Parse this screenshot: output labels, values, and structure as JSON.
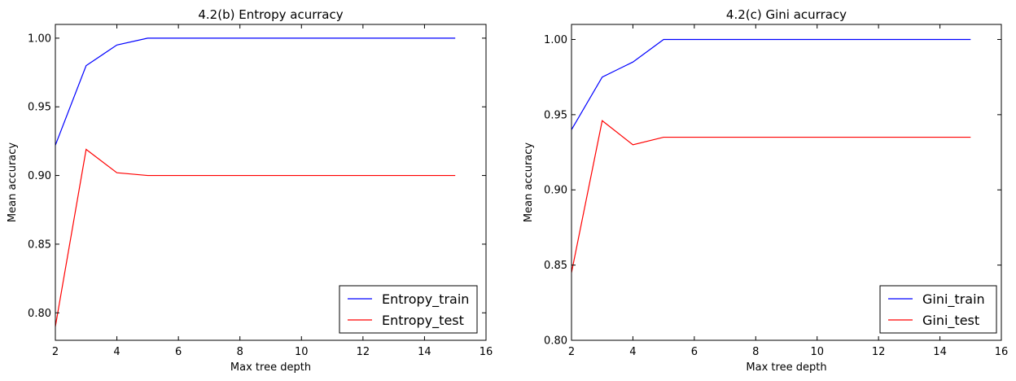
{
  "chart_data": [
    {
      "type": "line",
      "title": "4.2(b) Entropy acurracy",
      "xlabel": "Max tree depth",
      "ylabel": "Mean accuracy",
      "xlim": [
        2,
        16
      ],
      "ylim": [
        0.78,
        1.01
      ],
      "xticks": [
        2,
        4,
        6,
        8,
        10,
        12,
        14,
        16
      ],
      "xtick_labels": [
        "2",
        "4",
        "6",
        "8",
        "10",
        "12",
        "14",
        "16"
      ],
      "yticks": [
        0.8,
        0.85,
        0.9,
        0.95,
        1.0
      ],
      "ytick_labels": [
        "0.80",
        "0.85",
        "0.90",
        "0.95",
        "1.00"
      ],
      "grid": false,
      "legend_position": "lower-right",
      "x": [
        2,
        3,
        4,
        5,
        6,
        7,
        8,
        9,
        10,
        11,
        12,
        13,
        14,
        15
      ],
      "series": [
        {
          "name": "Entropy_train",
          "color": "#0000ff",
          "values": [
            0.922,
            0.98,
            0.995,
            1.0,
            1.0,
            1.0,
            1.0,
            1.0,
            1.0,
            1.0,
            1.0,
            1.0,
            1.0,
            1.0
          ]
        },
        {
          "name": "Entropy_test",
          "color": "#ff0000",
          "values": [
            0.79,
            0.919,
            0.902,
            0.9,
            0.9,
            0.9,
            0.9,
            0.9,
            0.9,
            0.9,
            0.9,
            0.9,
            0.9,
            0.9
          ]
        }
      ]
    },
    {
      "type": "line",
      "title": "4.2(c) Gini acurracy",
      "xlabel": "Max tree depth",
      "ylabel": "Mean accuracy",
      "xlim": [
        2,
        16
      ],
      "ylim": [
        0.8,
        1.01
      ],
      "xticks": [
        2,
        4,
        6,
        8,
        10,
        12,
        14,
        16
      ],
      "xtick_labels": [
        "2",
        "4",
        "6",
        "8",
        "10",
        "12",
        "14",
        "16"
      ],
      "yticks": [
        0.8,
        0.85,
        0.9,
        0.95,
        1.0
      ],
      "ytick_labels": [
        "0.80",
        "0.85",
        "0.90",
        "0.95",
        "1.00"
      ],
      "grid": false,
      "legend_position": "lower-right",
      "x": [
        2,
        3,
        4,
        5,
        6,
        7,
        8,
        9,
        10,
        11,
        12,
        13,
        14,
        15
      ],
      "series": [
        {
          "name": "Gini_train",
          "color": "#0000ff",
          "values": [
            0.94,
            0.975,
            0.985,
            1.0,
            1.0,
            1.0,
            1.0,
            1.0,
            1.0,
            1.0,
            1.0,
            1.0,
            1.0,
            1.0
          ]
        },
        {
          "name": "Gini_test",
          "color": "#ff0000",
          "values": [
            0.845,
            0.946,
            0.93,
            0.935,
            0.935,
            0.935,
            0.935,
            0.935,
            0.935,
            0.935,
            0.935,
            0.935,
            0.935,
            0.935
          ]
        }
      ]
    }
  ]
}
